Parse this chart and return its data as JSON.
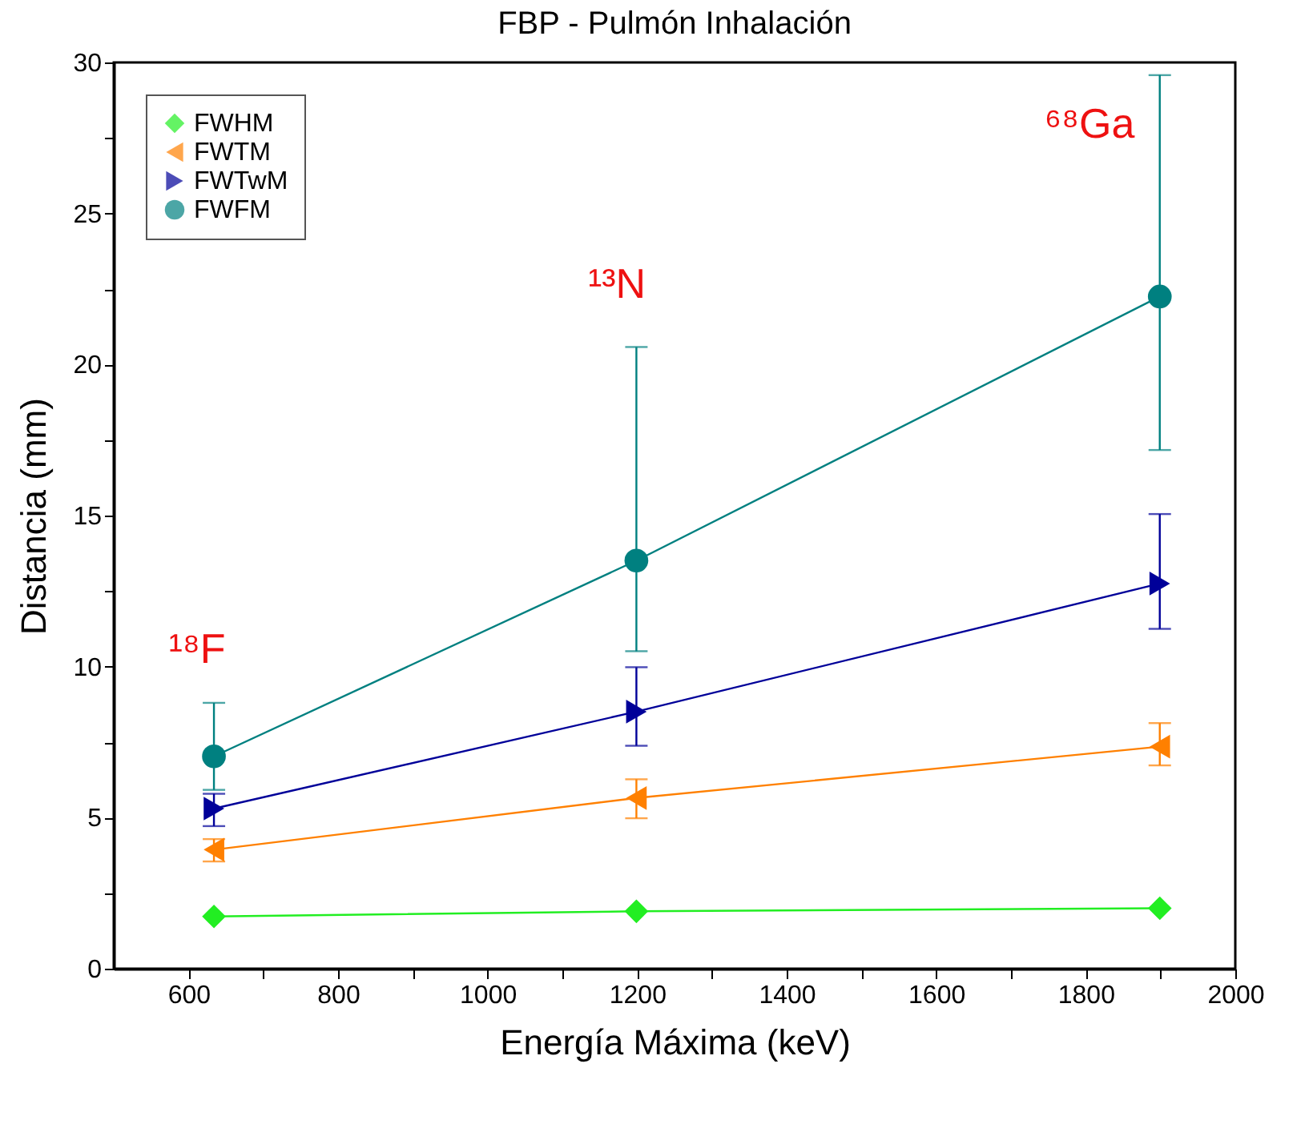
{
  "chart_data": {
    "type": "line",
    "title": "FBP - Pulmón Inhalación",
    "xlabel": "Energía Máxima (keV)",
    "ylabel": "Distancia (mm)",
    "x": [
      634,
      1199,
      1899
    ],
    "series": [
      {
        "name": "FWHM",
        "color": "#22ee22",
        "marker": "diamond",
        "values": [
          1.73,
          1.9,
          2.0
        ]
      },
      {
        "name": "FWTM",
        "color": "#ff8000",
        "marker": "triangle-left",
        "values": [
          3.94,
          5.65,
          7.35
        ],
        "errors": [
          [
            3.55,
            4.29
          ],
          [
            4.98,
            6.27
          ],
          [
            6.73,
            8.13
          ]
        ]
      },
      {
        "name": "FWTwM",
        "color": "#000099",
        "marker": "triangle-right",
        "values": [
          5.3,
          8.51,
          12.75
        ],
        "errors": [
          [
            4.72,
            5.79
          ],
          [
            7.38,
            9.98
          ],
          [
            11.25,
            15.05
          ]
        ]
      },
      {
        "name": "FWFM",
        "color": "#008080",
        "marker": "circle",
        "values": [
          7.03,
          13.51,
          22.25
        ],
        "errors": [
          [
            5.92,
            8.8
          ],
          [
            10.51,
            20.58
          ],
          [
            17.17,
            29.58
          ]
        ]
      }
    ],
    "xlim": [
      500,
      2000
    ],
    "xticks": [
      600,
      {
        "value": 700,
        "label": null
      },
      800,
      {
        "value": 900,
        "label": null
      },
      1000,
      {
        "value": 1100,
        "label": null
      },
      1200,
      {
        "value": 1300,
        "label": null
      },
      1400,
      {
        "value": 1500,
        "label": null
      },
      1600,
      {
        "value": 1700,
        "label": null
      },
      1800,
      {
        "value": 1900,
        "label": null
      },
      2000
    ],
    "ylim": [
      0,
      30
    ],
    "yticks": [
      0,
      {
        "value": 2.5,
        "label": null
      },
      5,
      {
        "value": 7.5,
        "label": null
      },
      10,
      {
        "value": 12.5,
        "label": null
      },
      15,
      {
        "value": 17.5,
        "label": null
      },
      20,
      {
        "value": 22.5,
        "label": null
      },
      25,
      {
        "value": 27.5,
        "label": null
      },
      30
    ],
    "legend": "top left",
    "grid": false,
    "line_style": "solid",
    "annotations": [
      "¹⁸F",
      "¹³N",
      "⁶⁸Ga"
    ]
  }
}
